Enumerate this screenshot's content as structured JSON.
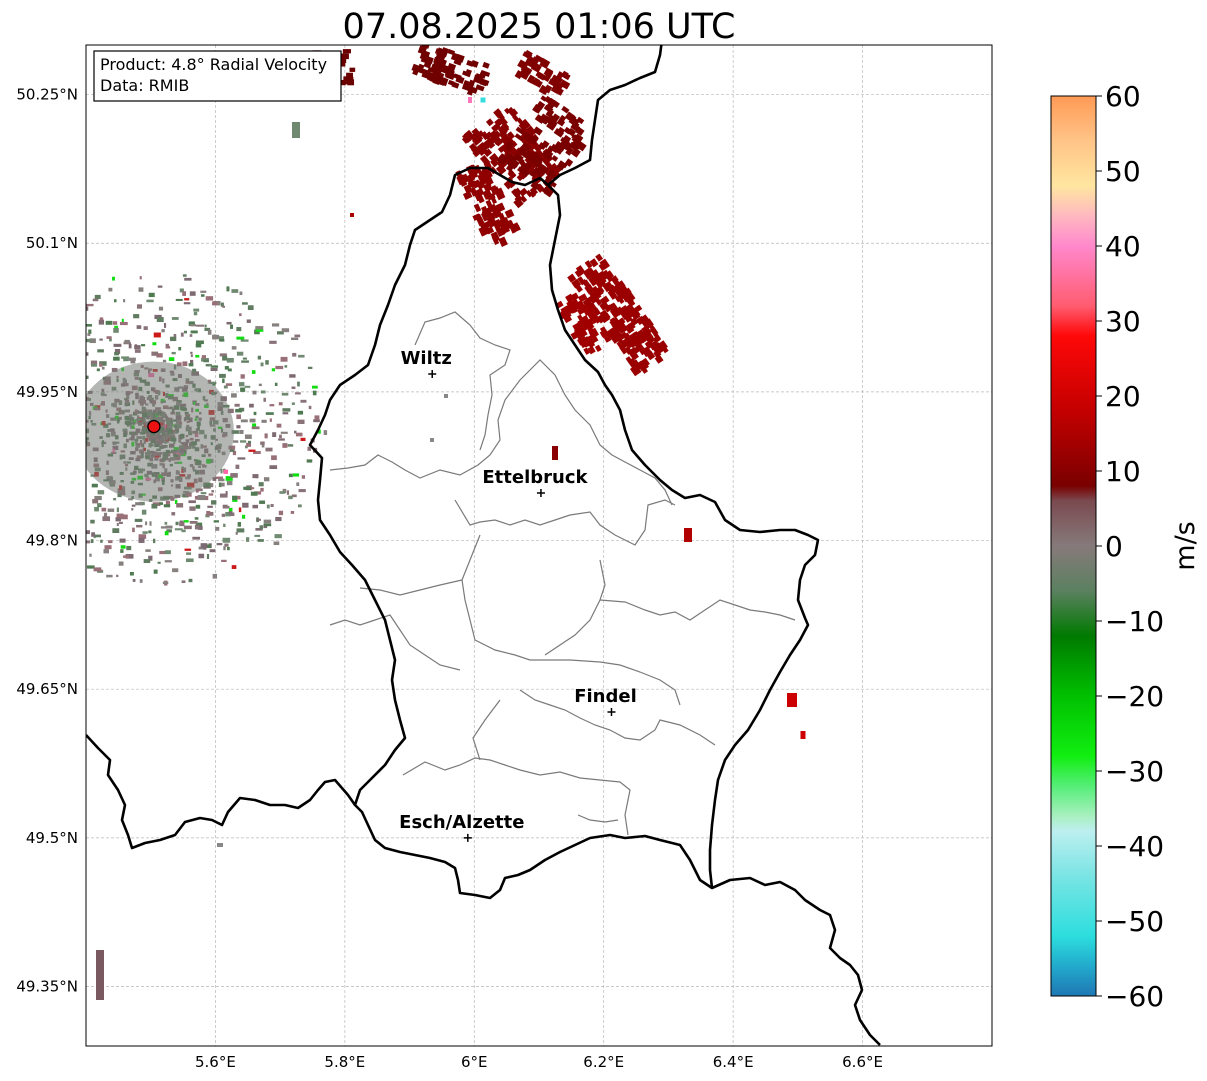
{
  "title": "07.08.2025 01:06 UTC",
  "info_box": {
    "product": "Product: 4.8° Radial Velocity",
    "source": "Data: RMIB"
  },
  "map": {
    "lon_range": [
      5.4,
      6.8
    ],
    "lat_range": [
      49.29,
      50.3
    ],
    "lon_ticks": [
      {
        "value": 5.6,
        "label": "5.6°E"
      },
      {
        "value": 5.8,
        "label": "5.8°E"
      },
      {
        "value": 6.0,
        "label": "6°E"
      },
      {
        "value": 6.2,
        "label": "6.2°E"
      },
      {
        "value": 6.4,
        "label": "6.4°E"
      },
      {
        "value": 6.6,
        "label": "6.6°E"
      }
    ],
    "lat_ticks": [
      {
        "value": 50.25,
        "label": "50.25°N"
      },
      {
        "value": 50.1,
        "label": "50.1°N"
      },
      {
        "value": 49.95,
        "label": "49.95°N"
      },
      {
        "value": 49.8,
        "label": "49.8°N"
      },
      {
        "value": 49.65,
        "label": "49.65°N"
      },
      {
        "value": 49.5,
        "label": "49.5°N"
      },
      {
        "value": 49.35,
        "label": "49.35°N"
      }
    ],
    "gridlines": true,
    "radar_site": {
      "lon": 5.505,
      "lat": 49.915,
      "color": "#ee1111"
    },
    "cities": [
      {
        "name": "Wiltz",
        "lon": 5.935,
        "lat": 49.968
      },
      {
        "name": "Ettelbruck",
        "lon": 6.103,
        "lat": 49.848
      },
      {
        "name": "Findel",
        "lon": 6.212,
        "lat": 49.627
      },
      {
        "name": "Esch/Alzette",
        "lon": 5.99,
        "lat": 49.5
      }
    ]
  },
  "colorbar": {
    "label": "m/s",
    "min": -60,
    "max": 60,
    "ticks": [
      {
        "value": 60,
        "label": "60"
      },
      {
        "value": 50,
        "label": "50"
      },
      {
        "value": 40,
        "label": "40"
      },
      {
        "value": 30,
        "label": "30"
      },
      {
        "value": 20,
        "label": "20"
      },
      {
        "value": 10,
        "label": "10"
      },
      {
        "value": 0,
        "label": "0"
      },
      {
        "value": -10,
        "label": "−10"
      },
      {
        "value": -20,
        "label": "−20"
      },
      {
        "value": -30,
        "label": "−30"
      },
      {
        "value": -40,
        "label": "−40"
      },
      {
        "value": -50,
        "label": "−50"
      },
      {
        "value": -60,
        "label": "−60"
      }
    ],
    "color_stops": [
      {
        "value": -60,
        "color": "#1f77b4"
      },
      {
        "value": -56,
        "color": "#22aacc"
      },
      {
        "value": -52,
        "color": "#2ddede"
      },
      {
        "value": -44,
        "color": "#7ae4e4"
      },
      {
        "value": -38,
        "color": "#bdeff0"
      },
      {
        "value": -36,
        "color": "#a8f0c0"
      },
      {
        "value": -32,
        "color": "#55ee77"
      },
      {
        "value": -28,
        "color": "#11ee11"
      },
      {
        "value": -20,
        "color": "#00c000"
      },
      {
        "value": -12,
        "color": "#007a00"
      },
      {
        "value": -6,
        "color": "#5b8060"
      },
      {
        "value": 0,
        "color": "#867a7a"
      },
      {
        "value": 6,
        "color": "#7a4a50"
      },
      {
        "value": 8,
        "color": "#7a0000"
      },
      {
        "value": 18,
        "color": "#c40000"
      },
      {
        "value": 28,
        "color": "#ff0808"
      },
      {
        "value": 32,
        "color": "#ff5c70"
      },
      {
        "value": 40,
        "color": "#ff88cc"
      },
      {
        "value": 44,
        "color": "#ffb8c0"
      },
      {
        "value": 48,
        "color": "#ffe6a0"
      },
      {
        "value": 54,
        "color": "#ffc488"
      },
      {
        "value": 60,
        "color": "#ff9a55"
      }
    ]
  }
}
